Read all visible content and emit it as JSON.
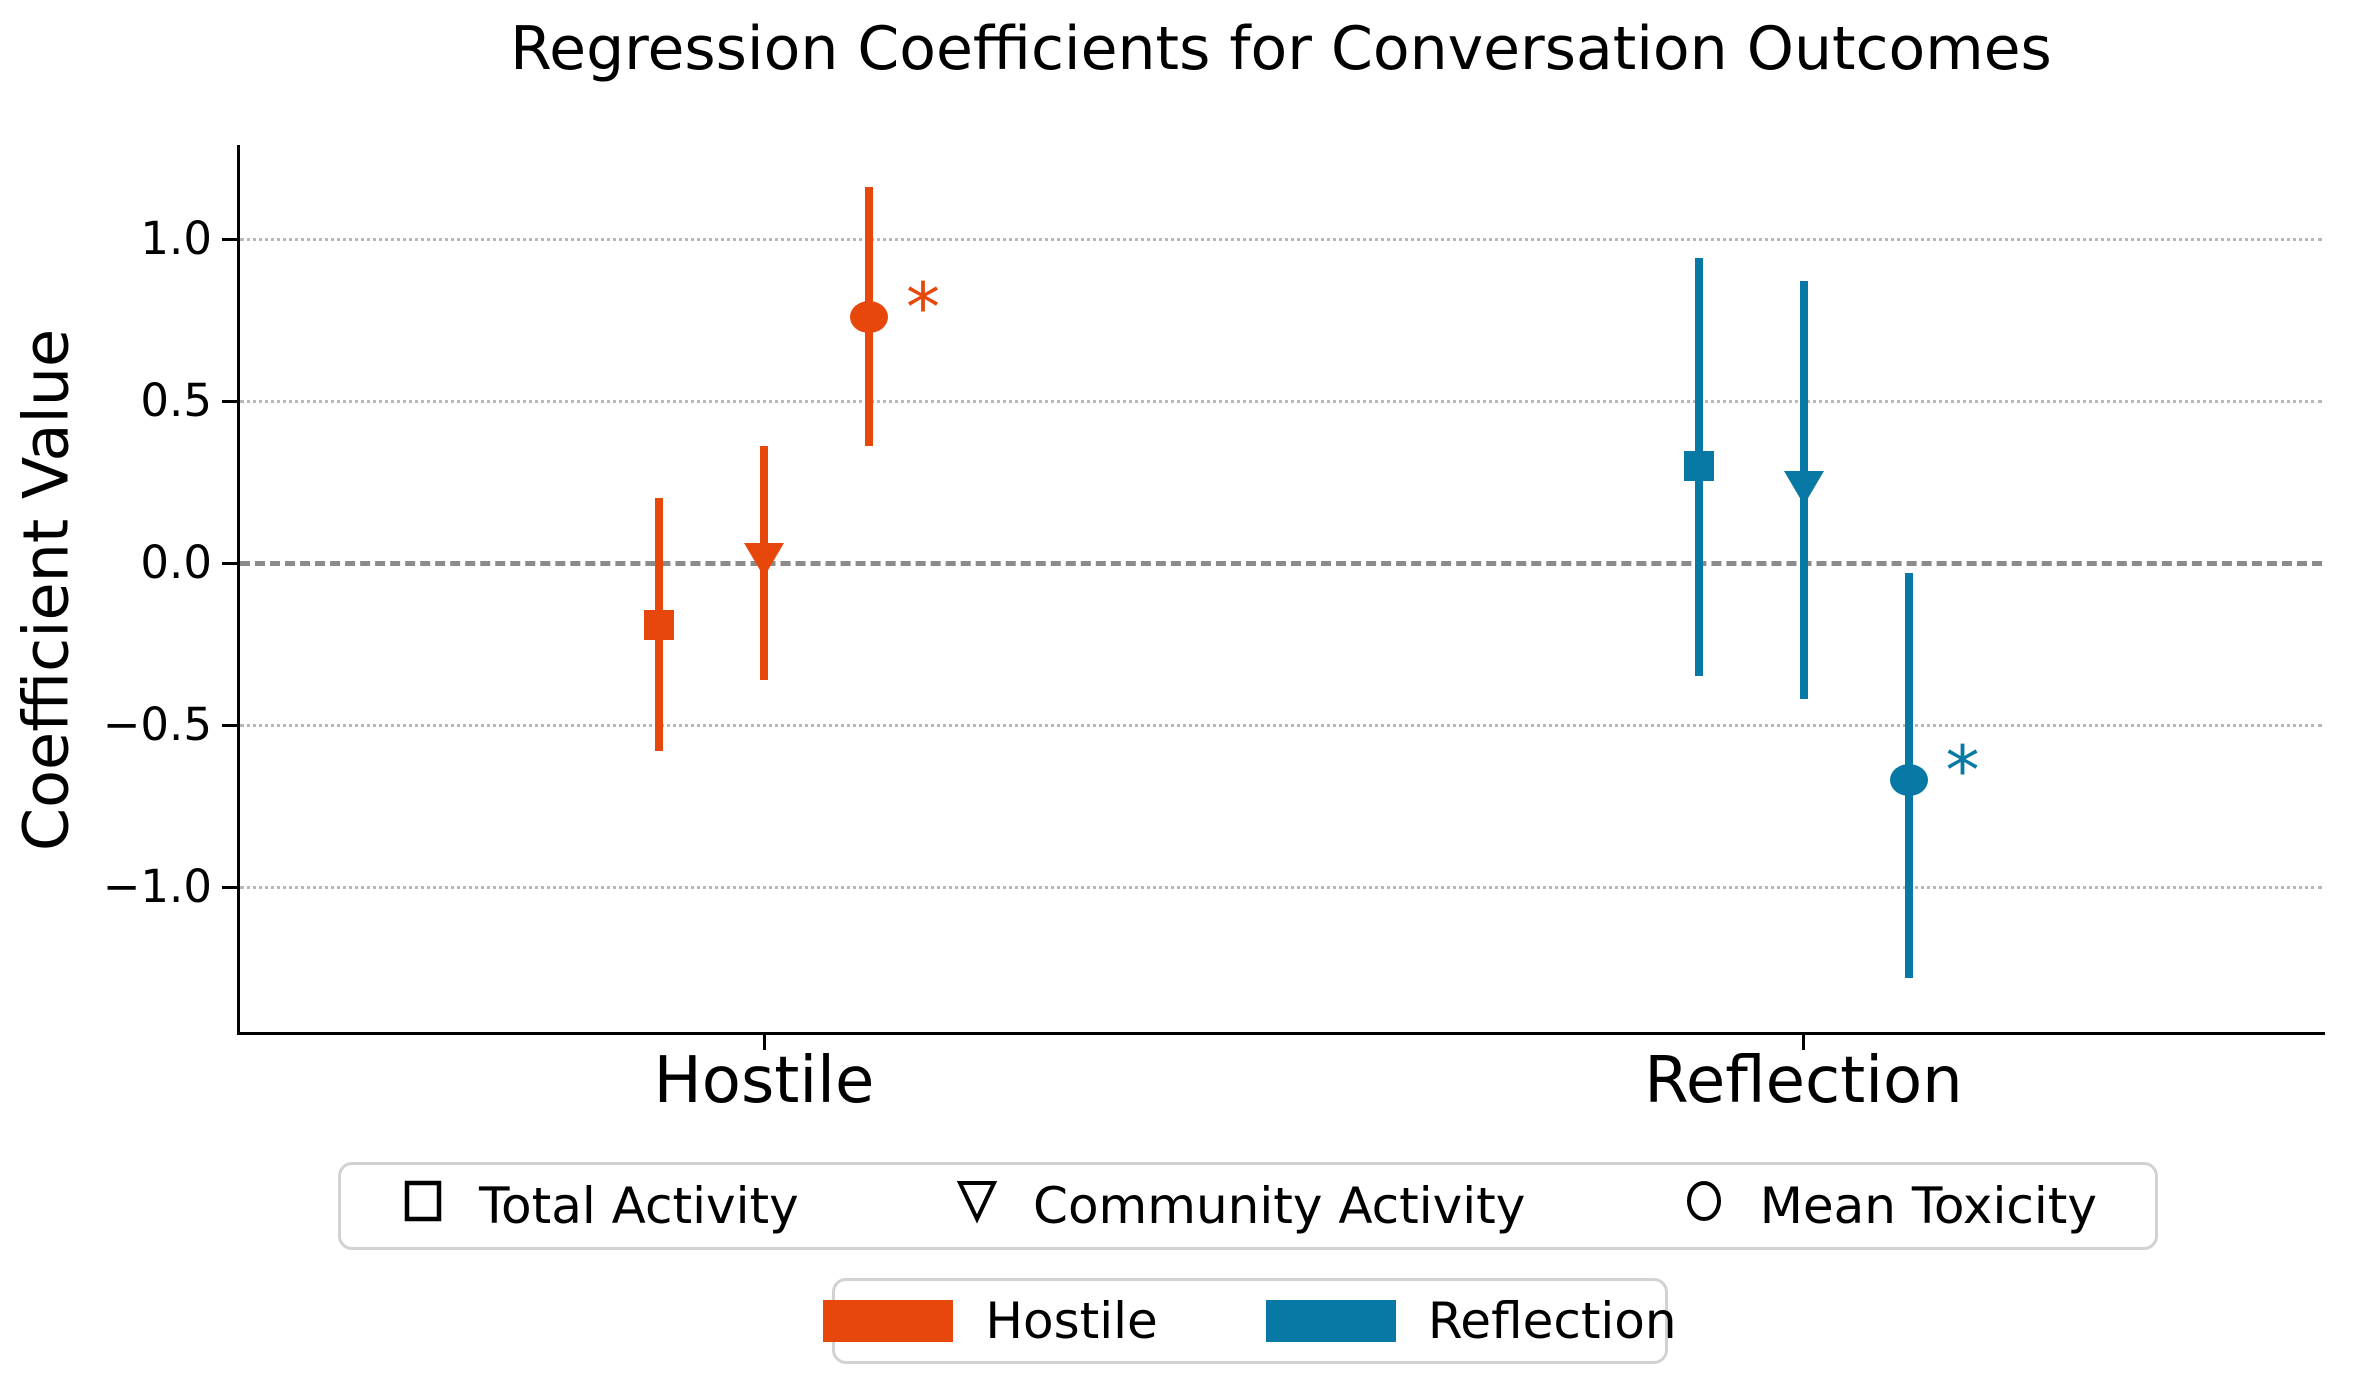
{
  "title": "Regression Coefficients for Conversation Outcomes",
  "colors": {
    "hostile": "#E8470C",
    "reflection": "#0879A4",
    "grid": "#B8B8B8",
    "zero_line": "#8B8B8B",
    "axis": "#000000",
    "legend_border": "#D2D2D2"
  },
  "chart_data": {
    "type": "scatter",
    "subtype": "dot-and-whisker coefficient plot",
    "title": "Regression Coefficients for Conversation Outcomes",
    "xlabel": "",
    "ylabel": "Coefficient Value",
    "categories": [
      "Hostile",
      "Reflection"
    ],
    "yticks": [
      "1.0",
      "0.5",
      "0.0",
      "−0.5",
      "−1.0"
    ],
    "ytick_values": [
      1.0,
      0.5,
      0.0,
      -0.5,
      -1.0
    ],
    "ylim": [
      -1.45,
      1.29
    ],
    "grid": "horizontal dotted",
    "zero_line": true,
    "significance_symbol": "*",
    "series": [
      {
        "name": "Hostile",
        "color": "#E8470C",
        "points": [
          {
            "measure": "Total Activity",
            "marker": "square",
            "value": -0.19,
            "ci_low": -0.58,
            "ci_high": 0.2,
            "significant": false
          },
          {
            "measure": "Community Activity",
            "marker": "triangle-down",
            "value": 0.01,
            "ci_low": -0.36,
            "ci_high": 0.36,
            "significant": false
          },
          {
            "measure": "Mean Toxicity",
            "marker": "circle",
            "value": 0.76,
            "ci_low": 0.36,
            "ci_high": 1.16,
            "significant": true
          }
        ]
      },
      {
        "name": "Reflection",
        "color": "#0879A4",
        "points": [
          {
            "measure": "Total Activity",
            "marker": "square",
            "value": 0.3,
            "ci_low": -0.35,
            "ci_high": 0.94,
            "significant": false
          },
          {
            "measure": "Community Activity",
            "marker": "triangle-down",
            "value": 0.23,
            "ci_low": -0.42,
            "ci_high": 0.87,
            "significant": false
          },
          {
            "measure": "Mean Toxicity",
            "marker": "circle",
            "value": -0.67,
            "ci_low": -1.28,
            "ci_high": -0.03,
            "significant": true
          }
        ]
      }
    ],
    "legend_markers": [
      {
        "label": "Total Activity",
        "marker": "square"
      },
      {
        "label": "Community Activity",
        "marker": "triangle-down"
      },
      {
        "label": "Mean Toxicity",
        "marker": "circle"
      }
    ],
    "legend_series": [
      {
        "label": "Hostile",
        "color": "#E8470C"
      },
      {
        "label": "Reflection",
        "color": "#0879A4"
      }
    ],
    "legend_position": "below axes, two stacked centered boxes"
  }
}
